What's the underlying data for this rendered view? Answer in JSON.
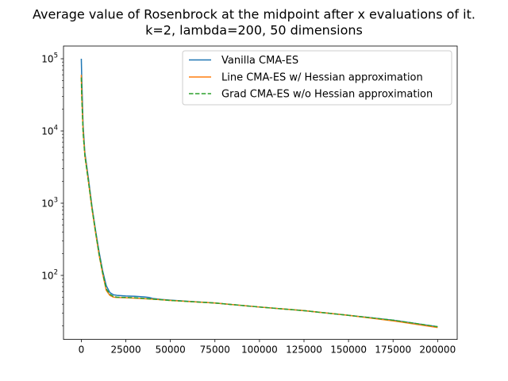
{
  "chart_data": {
    "type": "line",
    "title": "Average value of Rosenbrock at the midpoint after x evaluations of it.",
    "subtitle": "k=2, lambda=200, 50 dimensions",
    "xlabel": "",
    "ylabel": "",
    "yscale": "log",
    "xlim": [
      -10000,
      211000
    ],
    "ylim": [
      13,
      150000
    ],
    "grid": false,
    "legend_position": "top-right",
    "x_ticks": [
      {
        "value": 0,
        "label": "0"
      },
      {
        "value": 25000,
        "label": "25000"
      },
      {
        "value": 50000,
        "label": "50000"
      },
      {
        "value": 75000,
        "label": "75000"
      },
      {
        "value": 100000,
        "label": "100000"
      },
      {
        "value": 125000,
        "label": "125000"
      },
      {
        "value": 150000,
        "label": "150000"
      },
      {
        "value": 175000,
        "label": "175000"
      },
      {
        "value": 200000,
        "label": "200000"
      }
    ],
    "y_ticks": [
      {
        "value": 100,
        "base": "10",
        "exp": "2"
      },
      {
        "value": 1000,
        "base": "10",
        "exp": "3"
      },
      {
        "value": 10000,
        "base": "10",
        "exp": "4"
      },
      {
        "value": 100000,
        "base": "10",
        "exp": "5"
      }
    ],
    "series": [
      {
        "name": "Vanilla CMA-ES",
        "color": "#1f77b4",
        "dash": "solid",
        "points": [
          [
            0,
            100000
          ],
          [
            200,
            60000
          ],
          [
            1000,
            12000
          ],
          [
            2000,
            5000
          ],
          [
            4000,
            2200
          ],
          [
            6000,
            900
          ],
          [
            8000,
            420
          ],
          [
            10000,
            210
          ],
          [
            12000,
            115
          ],
          [
            14000,
            72
          ],
          [
            16000,
            58
          ],
          [
            18000,
            54
          ],
          [
            20000,
            53
          ],
          [
            25000,
            52
          ],
          [
            30000,
            51.5
          ],
          [
            35000,
            50.5
          ],
          [
            38000,
            49.5
          ],
          [
            40000,
            48
          ],
          [
            45000,
            46.5
          ],
          [
            50000,
            45.5
          ],
          [
            75000,
            41.5
          ],
          [
            100000,
            36.5
          ],
          [
            125000,
            32.5
          ],
          [
            150000,
            28
          ],
          [
            175000,
            24
          ],
          [
            200000,
            19.5
          ]
        ]
      },
      {
        "name": "Line CMA-ES w/ Hessian approximation",
        "color": "#ff7f0e",
        "dash": "solid",
        "points": [
          [
            0,
            60000
          ],
          [
            200,
            35000
          ],
          [
            1000,
            10000
          ],
          [
            2000,
            4600
          ],
          [
            4000,
            2000
          ],
          [
            6000,
            830
          ],
          [
            8000,
            390
          ],
          [
            10000,
            190
          ],
          [
            12000,
            105
          ],
          [
            14000,
            62
          ],
          [
            16000,
            53
          ],
          [
            18000,
            50
          ],
          [
            20000,
            49.5
          ],
          [
            25000,
            49
          ],
          [
            30000,
            48.5
          ],
          [
            40000,
            47
          ],
          [
            45000,
            46
          ],
          [
            50000,
            45
          ],
          [
            75000,
            41.5
          ],
          [
            100000,
            36.5
          ],
          [
            125000,
            32.5
          ],
          [
            150000,
            28
          ],
          [
            175000,
            23.5
          ],
          [
            200000,
            19
          ]
        ]
      },
      {
        "name": "Grad CMA-ES w/o Hessian approximation",
        "color": "#2ca02c",
        "dash": "dashed",
        "points": [
          [
            0,
            55000
          ],
          [
            200,
            32000
          ],
          [
            1000,
            9500
          ],
          [
            2000,
            4500
          ],
          [
            4000,
            2000
          ],
          [
            6000,
            850
          ],
          [
            8000,
            400
          ],
          [
            10000,
            195
          ],
          [
            12000,
            108
          ],
          [
            14000,
            65
          ],
          [
            16000,
            55
          ],
          [
            18000,
            51
          ],
          [
            20000,
            50
          ],
          [
            25000,
            49.5
          ],
          [
            30000,
            49
          ],
          [
            40000,
            47
          ],
          [
            45000,
            46
          ],
          [
            50000,
            45
          ],
          [
            75000,
            41.5
          ],
          [
            100000,
            36.5
          ],
          [
            125000,
            32.5
          ],
          [
            150000,
            28
          ],
          [
            175000,
            24
          ],
          [
            200000,
            19.5
          ]
        ]
      }
    ]
  }
}
